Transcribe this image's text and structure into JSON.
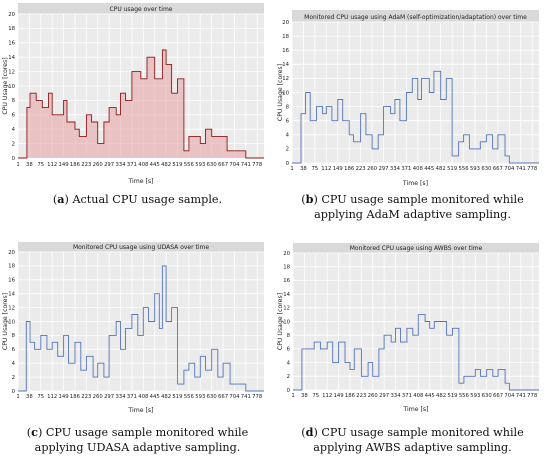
{
  "chart_data": [
    {
      "type": "line",
      "panel_label": "a",
      "title": "CPU usage over time",
      "caption_rest": " Actual CPU usage sample.",
      "xlabel": "Time [s]",
      "ylabel": "CPU Usage [cores]",
      "xlim": [
        1,
        800
      ],
      "ylim": [
        0,
        20
      ],
      "yticks": [
        0,
        2,
        4,
        6,
        8,
        10,
        12,
        14,
        16,
        18,
        20
      ],
      "xticks": [
        1,
        38,
        75,
        112,
        149,
        186,
        223,
        260,
        297,
        334,
        371,
        408,
        445,
        482,
        519,
        556,
        593,
        630,
        667,
        704,
        741,
        778
      ],
      "line_color": "#8b1a1a",
      "fill_color": "#e8a8a8",
      "x": [
        1,
        20,
        30,
        40,
        60,
        80,
        100,
        112,
        130,
        149,
        160,
        186,
        200,
        223,
        240,
        260,
        280,
        297,
        320,
        334,
        350,
        371,
        400,
        420,
        445,
        470,
        482,
        500,
        519,
        540,
        556,
        575,
        593,
        610,
        630,
        650,
        667,
        680,
        700,
        720,
        741,
        760,
        778,
        800
      ],
      "values": [
        0,
        0,
        7,
        9,
        8,
        7,
        9,
        6,
        6,
        8,
        5,
        4,
        3,
        6,
        5,
        2,
        5,
        7,
        6,
        9,
        8,
        12,
        11,
        14,
        11,
        15,
        13,
        9,
        11,
        1,
        3,
        3,
        2,
        4,
        3,
        3,
        3,
        1,
        1,
        1,
        0,
        0,
        0,
        0
      ]
    },
    {
      "type": "line",
      "panel_label": "b",
      "title": "Monitored CPU usage using AdaM (self-optimization/adaptation) over time",
      "caption_rest": " CPU usage sample monitored while applying AdaM adaptive sampling.",
      "xlabel": "Time [s]",
      "ylabel": "CPU Usage [cores]",
      "xlim": [
        1,
        800
      ],
      "ylim": [
        0,
        20
      ],
      "yticks": [
        0,
        2,
        4,
        6,
        8,
        10,
        12,
        14,
        16,
        18,
        20
      ],
      "xticks": [
        1,
        38,
        75,
        112,
        149,
        186,
        223,
        260,
        297,
        334,
        371,
        408,
        445,
        482,
        519,
        556,
        593,
        630,
        667,
        704,
        741,
        778
      ],
      "line_color": "#5575b8",
      "x": [
        1,
        20,
        30,
        45,
        60,
        80,
        100,
        112,
        130,
        149,
        165,
        186,
        200,
        223,
        240,
        260,
        280,
        297,
        320,
        334,
        350,
        371,
        390,
        408,
        420,
        445,
        460,
        482,
        500,
        519,
        540,
        556,
        575,
        593,
        610,
        630,
        650,
        667,
        690,
        704,
        741,
        760,
        778,
        800
      ],
      "values": [
        0,
        0,
        7,
        10,
        6,
        8,
        7,
        8,
        6,
        9,
        6,
        4,
        3,
        7,
        4,
        2,
        4,
        8,
        7,
        9,
        6,
        10,
        12,
        9,
        12,
        10,
        13,
        9,
        12,
        1,
        3,
        4,
        2,
        2,
        3,
        4,
        2,
        4,
        1,
        0,
        0,
        0,
        0,
        0
      ]
    },
    {
      "type": "line",
      "panel_label": "c",
      "title": "Monitored CPU usage using UDASA over time",
      "caption_rest": " CPU usage sample monitored while applying UDASA adaptive sampling.",
      "xlabel": "Time [s]",
      "ylabel": "CPU Usage [cores]",
      "xlim": [
        1,
        800
      ],
      "ylim": [
        0,
        20
      ],
      "yticks": [
        0,
        2,
        4,
        6,
        8,
        10,
        12,
        14,
        16,
        18,
        20
      ],
      "xticks": [
        1,
        38,
        75,
        112,
        149,
        186,
        223,
        260,
        297,
        334,
        371,
        408,
        445,
        482,
        519,
        556,
        593,
        630,
        667,
        704,
        741,
        778
      ],
      "line_color": "#5575b8",
      "x": [
        1,
        20,
        28,
        40,
        55,
        75,
        95,
        112,
        130,
        149,
        165,
        186,
        205,
        223,
        245,
        260,
        280,
        297,
        320,
        334,
        350,
        371,
        390,
        408,
        425,
        445,
        460,
        470,
        482,
        500,
        519,
        540,
        556,
        575,
        593,
        610,
        630,
        650,
        667,
        690,
        704,
        741,
        778,
        800
      ],
      "values": [
        0,
        0,
        10,
        7,
        6,
        8,
        6,
        7,
        5,
        8,
        4,
        7,
        3,
        5,
        2,
        4,
        2,
        8,
        10,
        6,
        9,
        11,
        8,
        12,
        10,
        14,
        9,
        18,
        10,
        12,
        1,
        3,
        4,
        2,
        5,
        3,
        6,
        2,
        4,
        1,
        1,
        0,
        0,
        0
      ]
    },
    {
      "type": "line",
      "panel_label": "d",
      "title": "Monitored CPU usage using AWBS over time",
      "caption_rest": " CPU usage sample monitored while applying AWBS adaptive sampling.",
      "xlabel": "Time [s]",
      "ylabel": "CPU Usage [cores]",
      "xlim": [
        1,
        800
      ],
      "ylim": [
        0,
        20
      ],
      "yticks": [
        0,
        2,
        4,
        6,
        8,
        10,
        12,
        14,
        16,
        18,
        20
      ],
      "xticks": [
        1,
        38,
        75,
        112,
        149,
        186,
        223,
        260,
        297,
        334,
        371,
        408,
        445,
        482,
        519,
        556,
        593,
        630,
        667,
        704,
        741,
        778
      ],
      "line_color": "#5575b8",
      "x": [
        1,
        20,
        30,
        50,
        70,
        90,
        112,
        130,
        149,
        170,
        186,
        200,
        223,
        245,
        260,
        280,
        297,
        320,
        334,
        350,
        371,
        390,
        408,
        430,
        445,
        460,
        482,
        500,
        519,
        540,
        556,
        575,
        593,
        610,
        630,
        650,
        667,
        690,
        704,
        741,
        778,
        800
      ],
      "values": [
        0,
        0,
        6,
        6,
        7,
        6,
        7,
        4,
        7,
        4,
        3,
        6,
        2,
        4,
        2,
        6,
        8,
        7,
        9,
        7,
        9,
        8,
        11,
        10,
        9,
        10,
        10,
        8,
        9,
        1,
        2,
        2,
        3,
        2,
        3,
        2,
        3,
        1,
        0,
        0,
        0,
        0
      ]
    }
  ]
}
